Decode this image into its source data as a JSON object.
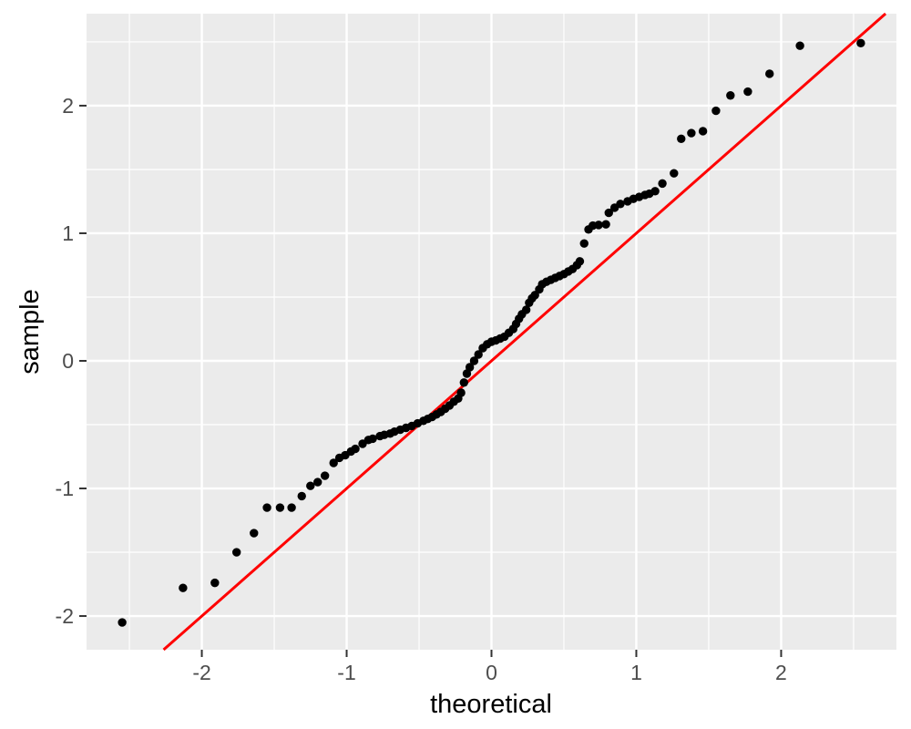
{
  "chart_data": {
    "type": "scatter",
    "subtype": "qq-plot",
    "title": "",
    "xlabel": "theoretical",
    "ylabel": "sample",
    "x_ticks": [
      -2,
      -1,
      0,
      1,
      2
    ],
    "y_ticks": [
      -2,
      -1,
      0,
      1,
      2
    ],
    "x_minor_ticks": [
      -2.5,
      -1.5,
      -0.5,
      0.5,
      1.5,
      2.5
    ],
    "y_minor_ticks": [
      -1.5,
      -0.5,
      0.5,
      1.5,
      2.5
    ],
    "xlim": [
      -2.796,
      2.796
    ],
    "ylim": [
      -2.264,
      2.721
    ],
    "grid": true,
    "legend_position": "none",
    "panel_bg_color": "#EBEBEB",
    "grid_color": "#FFFFFF",
    "tick_color": "#333333",
    "tick_label_color": "#4D4D4D",
    "point_color": "#000000",
    "point_radius": 4.7,
    "reference_line": {
      "slope": 1,
      "intercept": 0,
      "color": "#FF0000",
      "width": 3
    },
    "points": [
      [
        -2.55,
        -2.05
      ],
      [
        -2.13,
        -1.78
      ],
      [
        -1.91,
        -1.74
      ],
      [
        -1.76,
        -1.5
      ],
      [
        -1.64,
        -1.35
      ],
      [
        -1.55,
        -1.15
      ],
      [
        -1.46,
        -1.15
      ],
      [
        -1.38,
        -1.15
      ],
      [
        -1.31,
        -1.06
      ],
      [
        -1.25,
        -0.98
      ],
      [
        -1.2,
        -0.95
      ],
      [
        -1.15,
        -0.9
      ],
      [
        -1.09,
        -0.8
      ],
      [
        -1.05,
        -0.76
      ],
      [
        -1.01,
        -0.74
      ],
      [
        -0.97,
        -0.71
      ],
      [
        -0.94,
        -0.69
      ],
      [
        -0.89,
        -0.65
      ],
      [
        -0.85,
        -0.62
      ],
      [
        -0.82,
        -0.61
      ],
      [
        -0.77,
        -0.59
      ],
      [
        -0.74,
        -0.58
      ],
      [
        -0.7,
        -0.57
      ],
      [
        -0.67,
        -0.555
      ],
      [
        -0.63,
        -0.54
      ],
      [
        -0.59,
        -0.525
      ],
      [
        -0.55,
        -0.51
      ],
      [
        -0.51,
        -0.49
      ],
      [
        -0.47,
        -0.47
      ],
      [
        -0.44,
        -0.455
      ],
      [
        -0.41,
        -0.44
      ],
      [
        -0.38,
        -0.42
      ],
      [
        -0.35,
        -0.4
      ],
      [
        -0.32,
        -0.375
      ],
      [
        -0.29,
        -0.35
      ],
      [
        -0.26,
        -0.32
      ],
      [
        -0.23,
        -0.295
      ],
      [
        -0.21,
        -0.25
      ],
      [
        -0.19,
        -0.17
      ],
      [
        -0.17,
        -0.1
      ],
      [
        -0.15,
        -0.05
      ],
      [
        -0.12,
        0.0
      ],
      [
        -0.09,
        0.05
      ],
      [
        -0.06,
        0.1
      ],
      [
        -0.03,
        0.13
      ],
      [
        0.0,
        0.15
      ],
      [
        0.03,
        0.16
      ],
      [
        0.06,
        0.175
      ],
      [
        0.09,
        0.19
      ],
      [
        0.12,
        0.22
      ],
      [
        0.15,
        0.25
      ],
      [
        0.17,
        0.29
      ],
      [
        0.19,
        0.33
      ],
      [
        0.21,
        0.365
      ],
      [
        0.24,
        0.4
      ],
      [
        0.26,
        0.455
      ],
      [
        0.28,
        0.49
      ],
      [
        0.3,
        0.515
      ],
      [
        0.33,
        0.56
      ],
      [
        0.35,
        0.6
      ],
      [
        0.38,
        0.62
      ],
      [
        0.41,
        0.635
      ],
      [
        0.44,
        0.65
      ],
      [
        0.47,
        0.665
      ],
      [
        0.5,
        0.68
      ],
      [
        0.53,
        0.7
      ],
      [
        0.56,
        0.72
      ],
      [
        0.59,
        0.75
      ],
      [
        0.61,
        0.78
      ],
      [
        0.64,
        0.92
      ],
      [
        0.67,
        1.03
      ],
      [
        0.7,
        1.06
      ],
      [
        0.74,
        1.065
      ],
      [
        0.79,
        1.07
      ],
      [
        0.81,
        1.16
      ],
      [
        0.85,
        1.2
      ],
      [
        0.89,
        1.23
      ],
      [
        0.94,
        1.25
      ],
      [
        0.98,
        1.27
      ],
      [
        1.02,
        1.285
      ],
      [
        1.06,
        1.3
      ],
      [
        1.09,
        1.31
      ],
      [
        1.13,
        1.33
      ],
      [
        1.18,
        1.39
      ],
      [
        1.26,
        1.47
      ],
      [
        1.31,
        1.74
      ],
      [
        1.38,
        1.785
      ],
      [
        1.46,
        1.8
      ],
      [
        1.55,
        1.96
      ],
      [
        1.65,
        2.08
      ],
      [
        1.77,
        2.11
      ],
      [
        1.92,
        2.25
      ],
      [
        2.13,
        2.47
      ],
      [
        2.55,
        2.49
      ]
    ]
  }
}
